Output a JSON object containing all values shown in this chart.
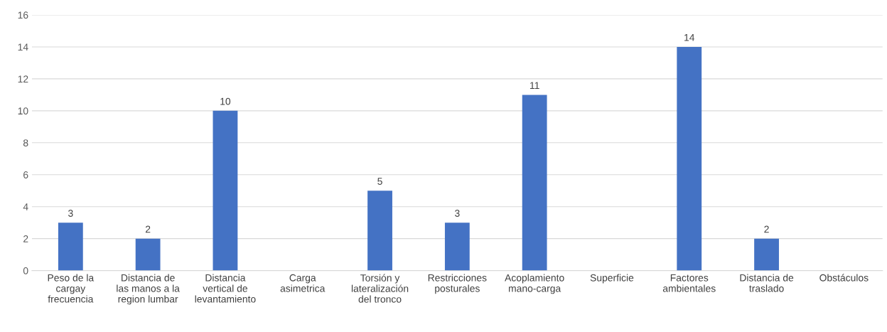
{
  "chart_data": {
    "type": "bar",
    "categories": [
      "Peso de la\ncargay\nfrecuencia",
      "Distancia de\nlas manos a la\nregion lumbar",
      "Distancia\nvertical de\nlevantamiento",
      "Carga\nasimetrica",
      "Torsión y\nlateralización\ndel tronco",
      "Restricciones\nposturales",
      "Acoplamiento\nmano-carga",
      "Superficie",
      "Factores\nambientales",
      "Distancia de\ntraslado",
      "Obstáculos"
    ],
    "values": [
      3,
      2,
      10,
      0,
      5,
      3,
      11,
      0,
      14,
      2,
      0
    ],
    "value_labels": [
      "3",
      "2",
      "10",
      null,
      "5",
      "3",
      "11",
      null,
      "14",
      "2",
      null
    ],
    "color": "#4472c4",
    "ylim": [
      0,
      16
    ],
    "yticks": [
      0,
      2,
      4,
      6,
      8,
      10,
      12,
      14,
      16
    ],
    "grid": "y",
    "legend": false
  }
}
